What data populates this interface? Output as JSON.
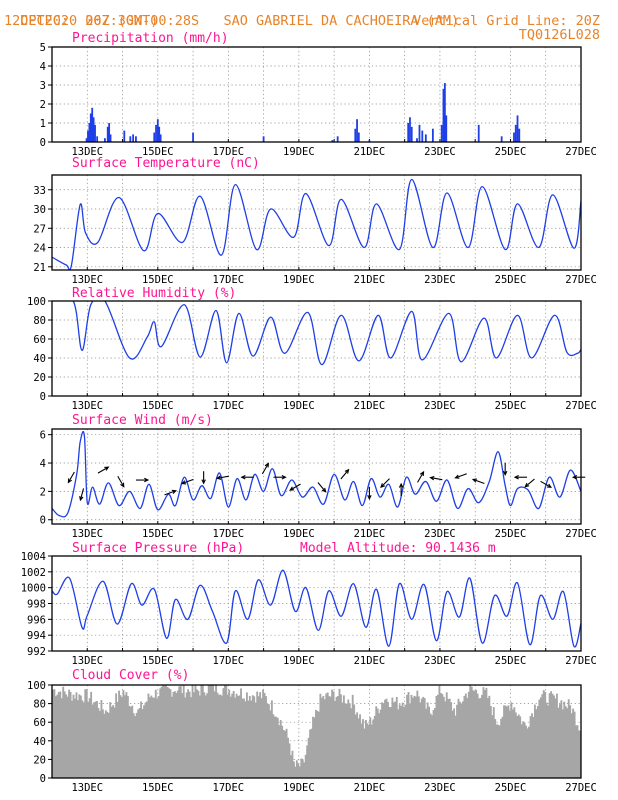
{
  "header": {
    "line1_left": "CPTEC:  067:30W-00:28S",
    "line1_mid": "SAO GABRIEL DA CACHOEIRA (AM)",
    "line2_left": "12DEC2020 20Z (GMT)",
    "line2_right": "Vertical Grid Line: 20Z",
    "line3_right": "TQ0126L028"
  },
  "colors": {
    "header": "#e8832a",
    "title": "#ff1493",
    "series": "#1f3fe6",
    "cloud": "#a6a6a6",
    "arrow": "#000000",
    "grid": "#8c8c8c"
  },
  "chart_data": [
    {
      "type": "bar",
      "title": "Precipitation (mm/h)",
      "x_ticks": [
        "13DEC",
        "15DEC",
        "17DEC",
        "19DEC",
        "21DEC",
        "23DEC",
        "25DEC",
        "27DEC"
      ],
      "ylim": [
        0,
        5
      ],
      "yticks": [
        0,
        1,
        2,
        3,
        4,
        5
      ],
      "grid": true,
      "bars": [
        {
          "x": 12.98,
          "y": 0.2
        },
        {
          "x": 13.02,
          "y": 0.6
        },
        {
          "x": 13.06,
          "y": 1.0
        },
        {
          "x": 13.1,
          "y": 1.5
        },
        {
          "x": 13.14,
          "y": 1.8
        },
        {
          "x": 13.18,
          "y": 1.3
        },
        {
          "x": 13.22,
          "y": 0.9
        },
        {
          "x": 13.28,
          "y": 0.3
        },
        {
          "x": 13.5,
          "y": 0.2
        },
        {
          "x": 13.58,
          "y": 0.8
        },
        {
          "x": 13.62,
          "y": 1.0
        },
        {
          "x": 13.66,
          "y": 0.4
        },
        {
          "x": 14.05,
          "y": 0.6
        },
        {
          "x": 14.22,
          "y": 0.3
        },
        {
          "x": 14.3,
          "y": 0.4
        },
        {
          "x": 14.38,
          "y": 0.3
        },
        {
          "x": 14.9,
          "y": 0.5
        },
        {
          "x": 14.95,
          "y": 0.9
        },
        {
          "x": 15.0,
          "y": 1.2
        },
        {
          "x": 15.04,
          "y": 0.8
        },
        {
          "x": 15.08,
          "y": 0.4
        },
        {
          "x": 16.0,
          "y": 0.5
        },
        {
          "x": 18.0,
          "y": 0.3
        },
        {
          "x": 19.95,
          "y": 0.1
        },
        {
          "x": 20.1,
          "y": 0.3
        },
        {
          "x": 20.6,
          "y": 0.7
        },
        {
          "x": 20.65,
          "y": 1.2
        },
        {
          "x": 20.7,
          "y": 0.5
        },
        {
          "x": 21.0,
          "y": 0.1
        },
        {
          "x": 22.1,
          "y": 1.0
        },
        {
          "x": 22.15,
          "y": 1.3
        },
        {
          "x": 22.2,
          "y": 0.8
        },
        {
          "x": 22.35,
          "y": 0.2
        },
        {
          "x": 22.42,
          "y": 0.9
        },
        {
          "x": 22.5,
          "y": 0.6
        },
        {
          "x": 22.6,
          "y": 0.4
        },
        {
          "x": 22.8,
          "y": 0.7
        },
        {
          "x": 23.05,
          "y": 0.9
        },
        {
          "x": 23.1,
          "y": 2.8
        },
        {
          "x": 23.14,
          "y": 3.1
        },
        {
          "x": 23.18,
          "y": 1.4
        },
        {
          "x": 24.1,
          "y": 0.9
        },
        {
          "x": 24.75,
          "y": 0.3
        },
        {
          "x": 25.1,
          "y": 0.5
        },
        {
          "x": 25.15,
          "y": 0.9
        },
        {
          "x": 25.2,
          "y": 1.4
        },
        {
          "x": 25.25,
          "y": 0.7
        }
      ]
    },
    {
      "type": "line",
      "title": "Surface Temperature (nC)",
      "x_ticks": [
        "13DEC",
        "15DEC",
        "17DEC",
        "19DEC",
        "21DEC",
        "23DEC",
        "25DEC",
        "27DEC"
      ],
      "ylim": [
        20.5,
        35.3
      ],
      "yticks": [
        21,
        24,
        27,
        30,
        33
      ],
      "grid": true,
      "x": [
        12.0,
        12.4,
        12.55,
        12.8,
        12.95,
        13.3,
        13.9,
        14.6,
        15.0,
        15.7,
        16.2,
        16.8,
        17.2,
        17.8,
        18.2,
        18.85,
        19.2,
        19.85,
        20.2,
        20.85,
        21.2,
        21.85,
        22.2,
        22.8,
        23.2,
        23.8,
        24.2,
        24.85,
        25.2,
        25.8,
        26.2,
        26.8,
        27.0
      ],
      "y": [
        22.5,
        21.3,
        21.2,
        30.7,
        26.3,
        24.8,
        31.8,
        23.5,
        29.3,
        24.8,
        32.0,
        22.8,
        33.8,
        23.7,
        30.0,
        25.6,
        32.4,
        24.3,
        31.5,
        24.0,
        30.8,
        23.7,
        34.6,
        24.0,
        32.5,
        24.0,
        33.5,
        23.7,
        30.8,
        24.0,
        32.2,
        23.9,
        31.3
      ]
    },
    {
      "type": "line",
      "title": "Relative Humidity (%)",
      "x_ticks": [
        "13DEC",
        "15DEC",
        "17DEC",
        "19DEC",
        "21DEC",
        "23DEC",
        "25DEC",
        "27DEC"
      ],
      "ylim": [
        0,
        100
      ],
      "yticks": [
        0,
        20,
        40,
        60,
        80,
        100
      ],
      "grid": true,
      "x": [
        12.0,
        12.6,
        12.85,
        13.1,
        13.5,
        14.2,
        14.7,
        14.9,
        15.1,
        15.75,
        16.2,
        16.65,
        16.95,
        17.3,
        17.7,
        18.2,
        18.6,
        19.25,
        19.65,
        20.2,
        20.7,
        21.25,
        21.6,
        22.2,
        22.5,
        23.25,
        23.6,
        24.25,
        24.6,
        25.2,
        25.6,
        26.25,
        26.6,
        26.9,
        27.0
      ],
      "y": [
        100,
        100,
        48,
        96,
        100,
        40,
        62,
        78,
        52,
        96,
        41,
        90,
        35,
        87,
        42,
        83,
        45,
        88,
        33,
        85,
        37,
        85,
        40,
        89,
        38,
        87,
        36,
        82,
        40,
        85,
        40,
        85,
        46,
        45,
        49
      ]
    },
    {
      "type": "line",
      "title": "Surface Wind (m/s)",
      "x_ticks": [
        "13DEC",
        "15DEC",
        "17DEC",
        "19DEC",
        "21DEC",
        "23DEC",
        "25DEC",
        "27DEC"
      ],
      "ylim": [
        -0.3,
        6.4
      ],
      "yticks": [
        0,
        2,
        4,
        6
      ],
      "grid": true,
      "x": [
        12.0,
        12.2,
        12.45,
        12.7,
        12.8,
        12.92,
        13.0,
        13.15,
        13.35,
        13.6,
        13.9,
        14.2,
        14.5,
        14.75,
        15.0,
        15.3,
        15.5,
        15.75,
        16.0,
        16.25,
        16.5,
        16.75,
        17.0,
        17.25,
        17.5,
        17.75,
        18.0,
        18.25,
        18.5,
        18.8,
        19.1,
        19.4,
        19.7,
        20.0,
        20.3,
        20.55,
        20.8,
        21.05,
        21.3,
        21.55,
        21.8,
        22.05,
        22.3,
        22.6,
        22.9,
        23.2,
        23.5,
        23.8,
        24.1,
        24.4,
        24.65,
        24.85,
        25.0,
        25.2,
        25.5,
        25.8,
        26.1,
        26.4,
        26.7,
        27.0
      ],
      "y": [
        0.8,
        0.3,
        0.5,
        3.2,
        5.5,
        5.9,
        1.2,
        2.3,
        1.1,
        2.6,
        1.0,
        2.0,
        0.8,
        2.5,
        0.7,
        1.8,
        1.0,
        3.0,
        1.4,
        2.4,
        1.5,
        3.3,
        0.9,
        2.9,
        1.4,
        3.2,
        2.0,
        3.6,
        1.7,
        2.8,
        1.6,
        2.3,
        1.1,
        3.2,
        1.4,
        2.7,
        1.0,
        2.9,
        1.6,
        2.5,
        0.9,
        3.0,
        1.8,
        2.7,
        1.3,
        2.8,
        0.8,
        2.2,
        1.2,
        2.7,
        4.8,
        2.4,
        1.0,
        2.2,
        2.1,
        0.8,
        3.0,
        1.6,
        3.5,
        2.0
      ],
      "arrows": [
        {
          "x": 12.55,
          "y": 3.0,
          "angle": 240
        },
        {
          "x": 12.85,
          "y": 1.8,
          "angle": 255
        },
        {
          "x": 13.45,
          "y": 3.5,
          "angle": 30
        },
        {
          "x": 13.95,
          "y": 2.7,
          "angle": -60
        },
        {
          "x": 14.55,
          "y": 2.8,
          "angle": 0
        },
        {
          "x": 15.35,
          "y": 1.9,
          "angle": 20
        },
        {
          "x": 15.85,
          "y": 2.7,
          "angle": 200
        },
        {
          "x": 16.3,
          "y": 3.0,
          "angle": 270
        },
        {
          "x": 16.85,
          "y": 3.0,
          "angle": 190
        },
        {
          "x": 17.55,
          "y": 3.0,
          "angle": 180
        },
        {
          "x": 18.05,
          "y": 3.6,
          "angle": 60
        },
        {
          "x": 18.45,
          "y": 3.0,
          "angle": 0
        },
        {
          "x": 18.9,
          "y": 2.3,
          "angle": 210
        },
        {
          "x": 19.65,
          "y": 2.3,
          "angle": -50
        },
        {
          "x": 20.3,
          "y": 3.2,
          "angle": 50
        },
        {
          "x": 21.0,
          "y": 1.9,
          "angle": 270
        },
        {
          "x": 21.45,
          "y": 2.6,
          "angle": 225
        },
        {
          "x": 21.9,
          "y": 2.1,
          "angle": 90
        },
        {
          "x": 22.45,
          "y": 3.0,
          "angle": 60
        },
        {
          "x": 22.9,
          "y": 2.9,
          "angle": 170
        },
        {
          "x": 23.6,
          "y": 3.1,
          "angle": 200
        },
        {
          "x": 24.1,
          "y": 2.7,
          "angle": 160
        },
        {
          "x": 24.85,
          "y": 3.6,
          "angle": 270
        },
        {
          "x": 25.3,
          "y": 3.0,
          "angle": 180
        },
        {
          "x": 25.55,
          "y": 2.6,
          "angle": 220
        },
        {
          "x": 26.0,
          "y": 2.5,
          "angle": -30
        },
        {
          "x": 26.95,
          "y": 3.0,
          "angle": 180
        }
      ]
    },
    {
      "type": "line",
      "title": "Surface Pressure (hPa)",
      "annotation": "Model Altitude: 90.1436 m",
      "x_ticks": [
        "13DEC",
        "15DEC",
        "17DEC",
        "19DEC",
        "21DEC",
        "23DEC",
        "25DEC",
        "27DEC"
      ],
      "ylim": [
        992,
        1004
      ],
      "yticks": [
        992,
        994,
        996,
        998,
        1000,
        1002,
        1004
      ],
      "grid": true,
      "x": [
        12.0,
        12.15,
        12.5,
        12.85,
        13.0,
        13.45,
        13.85,
        14.25,
        14.55,
        14.9,
        15.25,
        15.5,
        15.85,
        16.2,
        16.55,
        16.95,
        17.2,
        17.55,
        17.85,
        18.2,
        18.55,
        18.9,
        19.2,
        19.55,
        19.85,
        20.2,
        20.55,
        20.9,
        21.2,
        21.55,
        21.85,
        22.2,
        22.55,
        22.9,
        23.2,
        23.55,
        23.85,
        24.2,
        24.55,
        24.9,
        25.2,
        25.55,
        25.85,
        26.2,
        26.5,
        26.8,
        27.0
      ],
      "y": [
        999.6,
        999.2,
        1001.2,
        995.0,
        996.5,
        1000.8,
        995.4,
        1000.5,
        997.8,
        999.8,
        993.6,
        998.5,
        996.0,
        1000.3,
        997.0,
        993.0,
        999.6,
        996.0,
        1001.0,
        997.8,
        1002.2,
        997.0,
        1000.0,
        994.6,
        999.6,
        996.4,
        1000.5,
        995.0,
        999.8,
        992.6,
        1000.5,
        996.0,
        1000.4,
        993.3,
        999.5,
        996.3,
        1001.2,
        993.0,
        999.0,
        996.4,
        1000.6,
        992.8,
        999.0,
        996.0,
        999.5,
        992.6,
        995.5
      ]
    },
    {
      "type": "bar",
      "title": "Cloud Cover (%)",
      "x_ticks": [
        "13DEC",
        "15DEC",
        "17DEC",
        "19DEC",
        "21DEC",
        "23DEC",
        "25DEC",
        "27DEC"
      ],
      "ylim": [
        0,
        100
      ],
      "yticks": [
        0,
        20,
        40,
        60,
        80,
        100
      ],
      "grid": true,
      "profile": [
        [
          12.0,
          95
        ],
        [
          12.5,
          90
        ],
        [
          13.0,
          88
        ],
        [
          13.5,
          72
        ],
        [
          14.0,
          93
        ],
        [
          14.4,
          70
        ],
        [
          14.8,
          90
        ],
        [
          15.5,
          96
        ],
        [
          16.0,
          93
        ],
        [
          16.5,
          98
        ],
        [
          17.0,
          95
        ],
        [
          17.5,
          90
        ],
        [
          18.0,
          88
        ],
        [
          18.35,
          70
        ],
        [
          18.7,
          40
        ],
        [
          18.85,
          12
        ],
        [
          19.1,
          14
        ],
        [
          19.35,
          55
        ],
        [
          19.6,
          85
        ],
        [
          20.0,
          90
        ],
        [
          20.5,
          82
        ],
        [
          20.85,
          55
        ],
        [
          21.0,
          60
        ],
        [
          21.4,
          86
        ],
        [
          21.8,
          80
        ],
        [
          22.3,
          92
        ],
        [
          22.7,
          70
        ],
        [
          23.0,
          95
        ],
        [
          23.4,
          72
        ],
        [
          23.8,
          95
        ],
        [
          24.3,
          90
        ],
        [
          24.6,
          60
        ],
        [
          25.0,
          82
        ],
        [
          25.4,
          55
        ],
        [
          25.8,
          88
        ],
        [
          26.3,
          84
        ],
        [
          26.7,
          76
        ],
        [
          27.0,
          50
        ]
      ]
    }
  ]
}
